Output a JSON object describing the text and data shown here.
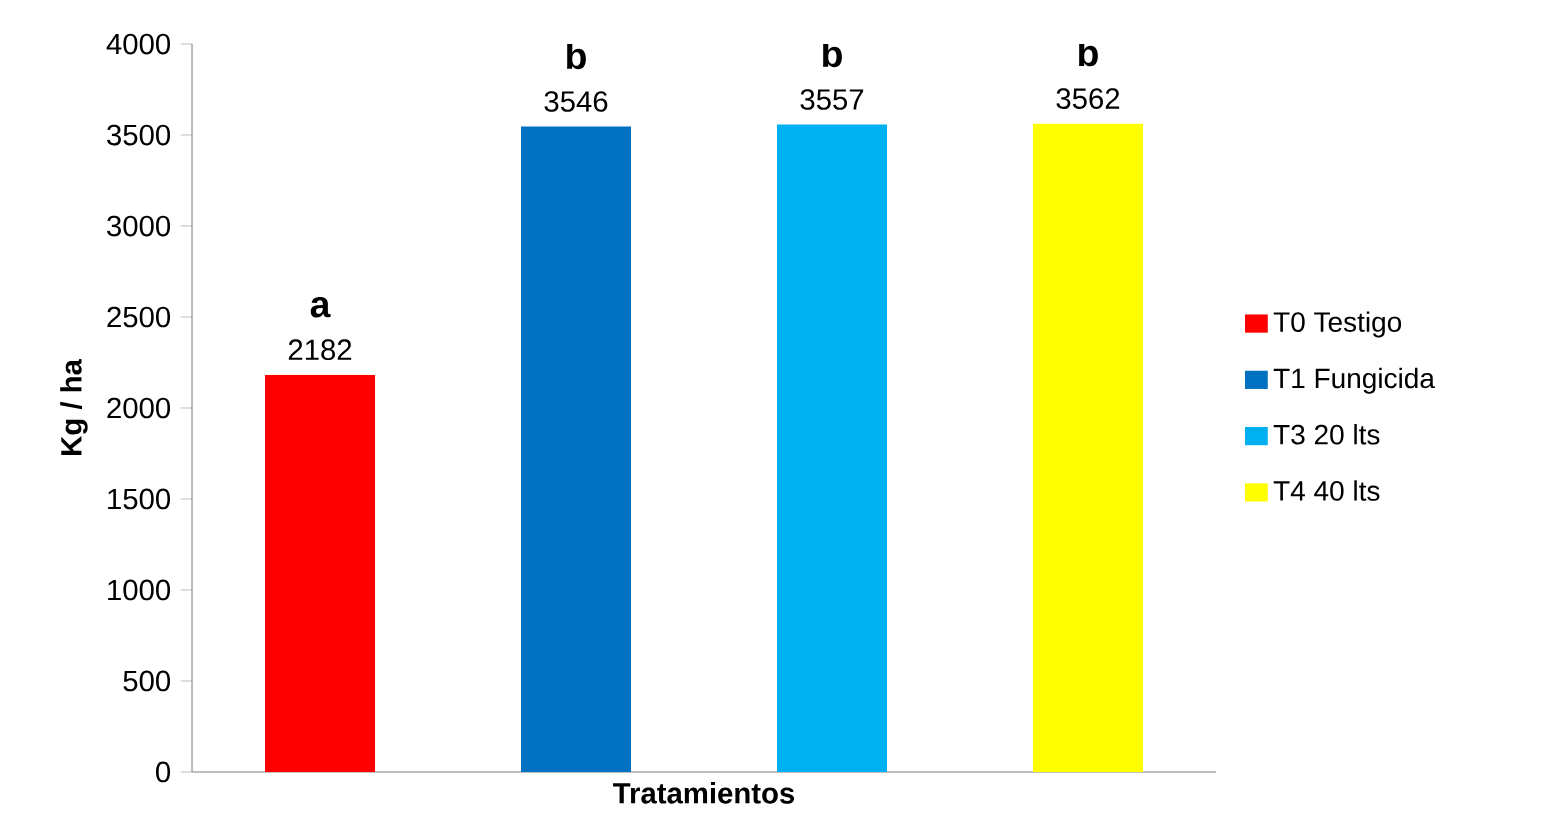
{
  "chart_data": {
    "type": "bar",
    "ylabel": "Kg / ha",
    "xlabel": "Tratamientos",
    "categories": [
      null,
      null,
      null,
      null
    ],
    "series": [
      {
        "name": "T0  Testigo",
        "color": "#ff0000",
        "values": [
          2182,
          null,
          null,
          null
        ]
      },
      {
        "name": "T1 Fungicida",
        "color": "#0070c0",
        "values": [
          null,
          3546,
          null,
          null
        ]
      },
      {
        "name": "T3  20 lts",
        "color": "#00b0f0",
        "values": [
          null,
          null,
          3557,
          null
        ]
      },
      {
        "name": "T4  40 lts",
        "color": "#ffff00",
        "values": [
          null,
          null,
          null,
          3562
        ]
      }
    ],
    "ylim": [
      0,
      4000
    ],
    "yticks": [
      0,
      500,
      1000,
      1500,
      2000,
      2500,
      3000,
      3500,
      4000
    ],
    "data_labels": true,
    "legend": "right",
    "grid": false,
    "annotations": [
      "a",
      "b",
      "b",
      "b"
    ]
  }
}
